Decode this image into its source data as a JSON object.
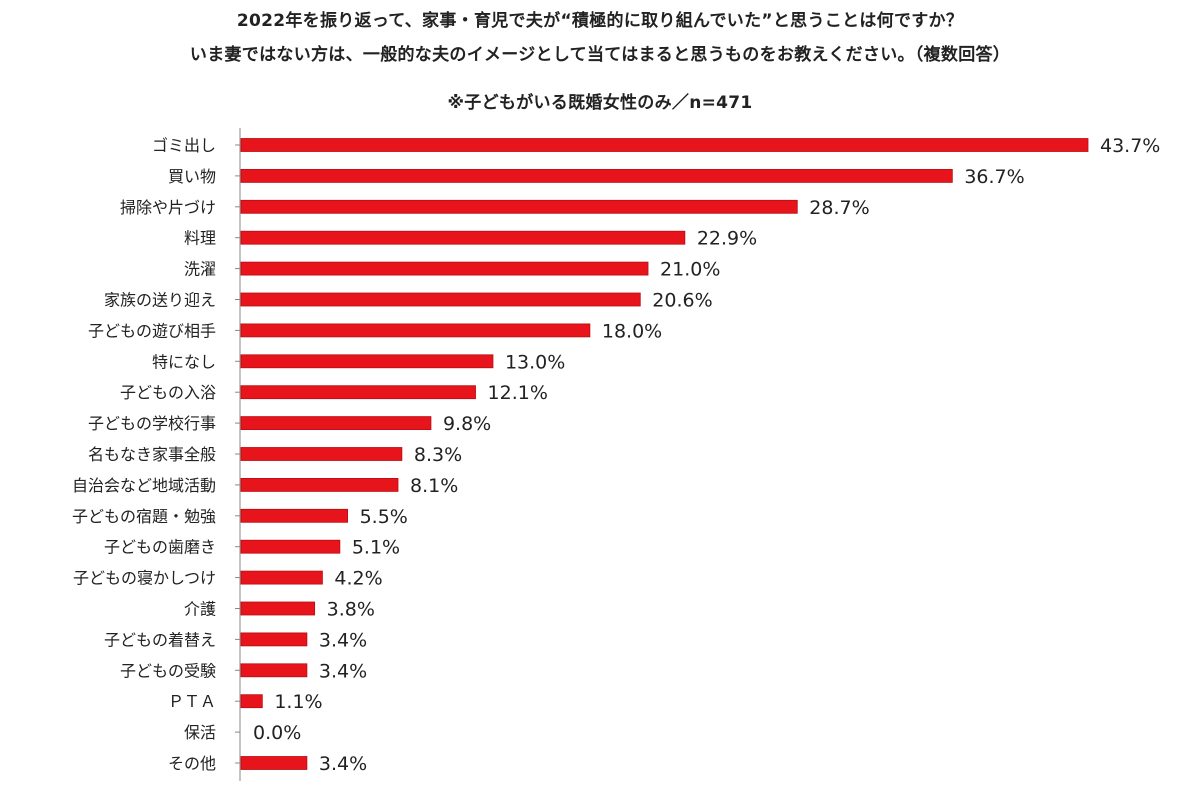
{
  "chart_data": {
    "type": "bar",
    "orientation": "horizontal",
    "title": "2022年を振り返って、家事・育児で夫が“積極的に取り組んでいた”と思うことは何ですか？",
    "subtitle": "いま妻ではない方は、一般的な夫のイメージとして当てはまると思うものをお教えください。（複数回答）",
    "note": "※子どもがいる既婚女性のみ／n=471",
    "categories": [
      "ゴミ出し",
      "買い物",
      "掃除や片づけ",
      "料理",
      "洗濯",
      "家族の送り迎え",
      "子どもの遊び相手",
      "特になし",
      "子どもの入浴",
      "子どもの学校行事",
      "名もなき家事全般",
      "自治会など地域活動",
      "子どもの宿題・勉強",
      "子どもの歯磨き",
      "子どもの寝かしつけ",
      "介護",
      "子どもの着替え",
      "子どもの受験",
      "ＰＴＡ",
      "保活",
      "その他"
    ],
    "values": [
      43.7,
      36.7,
      28.7,
      22.9,
      21.0,
      20.6,
      18.0,
      13.0,
      12.1,
      9.8,
      8.3,
      8.1,
      5.5,
      5.1,
      4.2,
      3.8,
      3.4,
      3.4,
      1.1,
      0.0,
      3.4
    ],
    "value_labels": [
      "43.7%",
      "36.7%",
      "28.7%",
      "22.9%",
      "21.0%",
      "20.6%",
      "18.0%",
      "13.0%",
      "12.1%",
      "9.8%",
      "8.3%",
      "8.1%",
      "5.5%",
      "5.1%",
      "4.2%",
      "3.8%",
      "3.4%",
      "3.4%",
      "1.1%",
      "0.0%",
      "3.4%"
    ],
    "xlim": [
      0,
      43.7
    ],
    "grid": false,
    "colors": {
      "bar": "#e8141c",
      "bar_edge": "#b80d12",
      "axis": "#888888"
    }
  }
}
